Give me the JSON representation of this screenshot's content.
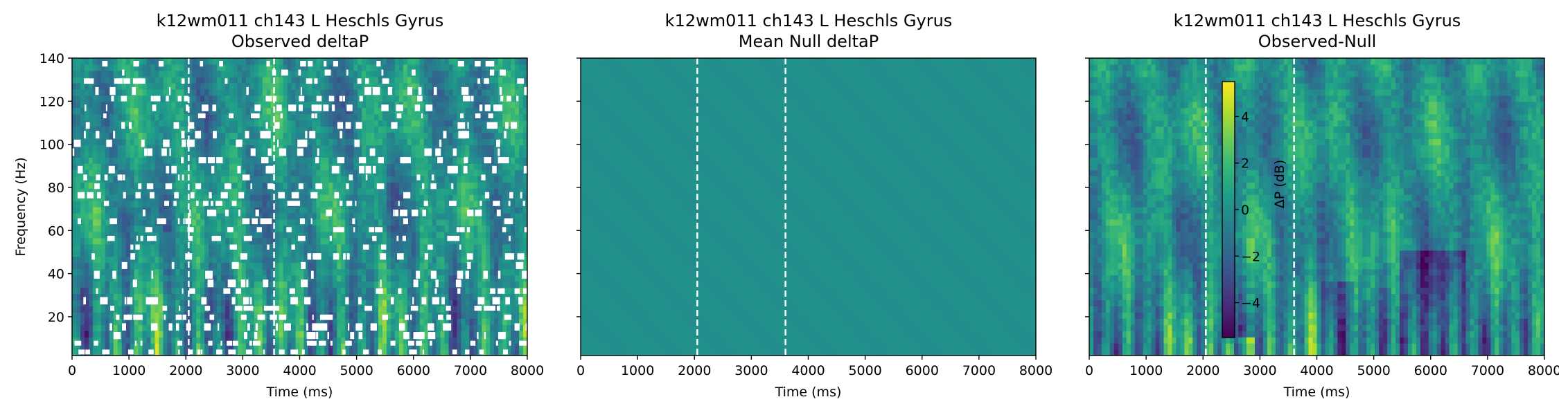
{
  "chart_data": [
    {
      "type": "heatmap",
      "title": "k12wm011 ch143 L Heschls Gyrus",
      "subtitle": "Observed deltaP",
      "xlabel": "Time (ms)",
      "ylabel": "Frequency (Hz)",
      "xlim": [
        0,
        8000
      ],
      "ylim": [
        2,
        140
      ],
      "x_ticks": [
        0,
        1000,
        2000,
        3000,
        4000,
        5000,
        6000,
        7000,
        8000
      ],
      "y_ticks": [
        20,
        40,
        60,
        80,
        100,
        120,
        140
      ],
      "colormap": "viridis",
      "color_range_db": [
        -5.5,
        5.5
      ],
      "event_lines_ms": [
        2050,
        3550
      ],
      "masked_nonsignificant": true
    },
    {
      "type": "heatmap",
      "title": "k12wm011 ch143 L Heschls Gyrus",
      "subtitle": "Mean Null deltaP",
      "xlabel": "Time (ms)",
      "ylabel": "",
      "xlim": [
        0,
        8000
      ],
      "ylim": [
        2,
        140
      ],
      "x_ticks": [
        0,
        1000,
        2000,
        3000,
        4000,
        5000,
        6000,
        7000,
        8000
      ],
      "colormap": "viridis",
      "color_range_db": [
        -5.5,
        5.5
      ],
      "event_lines_ms": [
        2050,
        3600
      ],
      "uniform_value_db": 0
    },
    {
      "type": "heatmap",
      "title": "k12wm011 ch143 L Heschls Gyrus",
      "subtitle": "Observed-Null",
      "xlabel": "Time (ms)",
      "ylabel": "",
      "xlim": [
        0,
        8000
      ],
      "ylim": [
        2,
        140
      ],
      "x_ticks": [
        0,
        1000,
        2000,
        3000,
        4000,
        5000,
        6000,
        7000,
        8000
      ],
      "colormap": "viridis",
      "color_range_db": [
        -5.5,
        5.5
      ],
      "event_lines_ms": [
        2050,
        3600
      ],
      "colorbar": {
        "label": "ΔP (dB)",
        "ticks": [
          4,
          2,
          0,
          -2,
          -4
        ],
        "tick_labels": [
          "4",
          "2",
          "0",
          "−2",
          "−4"
        ]
      }
    }
  ]
}
